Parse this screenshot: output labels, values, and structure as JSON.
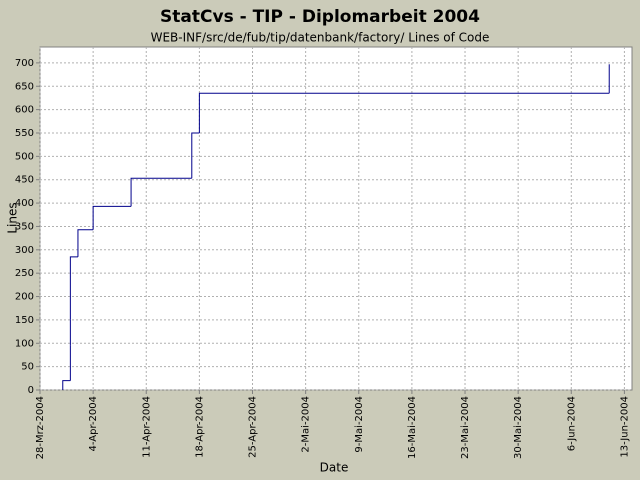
{
  "chart_data": {
    "type": "step-line",
    "title": "StatCvs - TIP - Diplomarbeit 2004",
    "subtitle": "WEB-INF/src/de/fub/tip/datenbank/factory/ Lines of Code",
    "x_label": "Date",
    "y_label": "Lines",
    "series": [
      {
        "name": "Lines of Code",
        "color": "#00008b",
        "x": [
          "2004-03-31",
          "2004-03-31",
          "2004-04-01",
          "2004-04-01",
          "2004-04-01",
          "2004-04-02",
          "2004-04-04",
          "2004-04-09",
          "2004-04-17",
          "2004-04-18",
          "2004-06-11"
        ],
        "values": [
          0,
          20,
          95,
          150,
          285,
          343,
          393,
          453,
          550,
          635,
          697
        ]
      }
    ],
    "xlim": [
      "2004-03-28",
      "2004-06-14"
    ],
    "xticks": [
      {
        "value": "2004-03-28",
        "label": "28-Mrz-2004"
      },
      {
        "value": "2004-04-04",
        "label": "4-Apr-2004"
      },
      {
        "value": "2004-04-11",
        "label": "11-Apr-2004"
      },
      {
        "value": "2004-04-18",
        "label": "18-Apr-2004"
      },
      {
        "value": "2004-04-25",
        "label": "25-Apr-2004"
      },
      {
        "value": "2004-05-02",
        "label": "2-Mai-2004"
      },
      {
        "value": "2004-05-09",
        "label": "9-Mai-2004"
      },
      {
        "value": "2004-05-16",
        "label": "16-Mai-2004"
      },
      {
        "value": "2004-05-23",
        "label": "23-Mai-2004"
      },
      {
        "value": "2004-05-30",
        "label": "30-Mai-2004"
      },
      {
        "value": "2004-06-06",
        "label": "6-Jun-2004"
      },
      {
        "value": "2004-06-13",
        "label": "13-Jun-2004"
      }
    ],
    "ylim": [
      0,
      734
    ],
    "yticks": [
      0,
      50,
      100,
      150,
      200,
      250,
      300,
      350,
      400,
      450,
      500,
      550,
      600,
      650,
      700
    ],
    "grid": true
  }
}
